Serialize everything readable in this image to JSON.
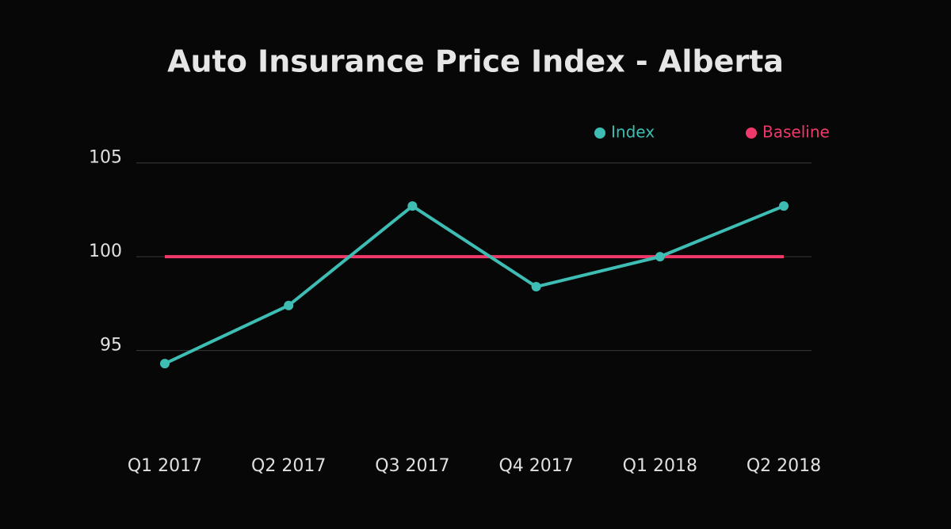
{
  "chart_data": {
    "type": "line",
    "title": "Auto Insurance Price Index - Alberta",
    "categories": [
      "Q1 2017",
      "Q2 2017",
      "Q3 2017",
      "Q4 2017",
      "Q1 2018",
      "Q2 2018"
    ],
    "series": [
      {
        "name": "Index",
        "color": "#3dbdb3",
        "markers": true,
        "values": [
          94.3,
          97.4,
          102.7,
          98.4,
          100,
          102.7
        ]
      },
      {
        "name": "Baseline",
        "color": "#f0396a",
        "markers": false,
        "values": [
          100,
          100,
          100,
          100,
          100,
          100
        ]
      }
    ],
    "ylim": [
      90,
      106
    ],
    "yticks": [
      95,
      100,
      105
    ],
    "grid": true,
    "legend": "top-right"
  }
}
